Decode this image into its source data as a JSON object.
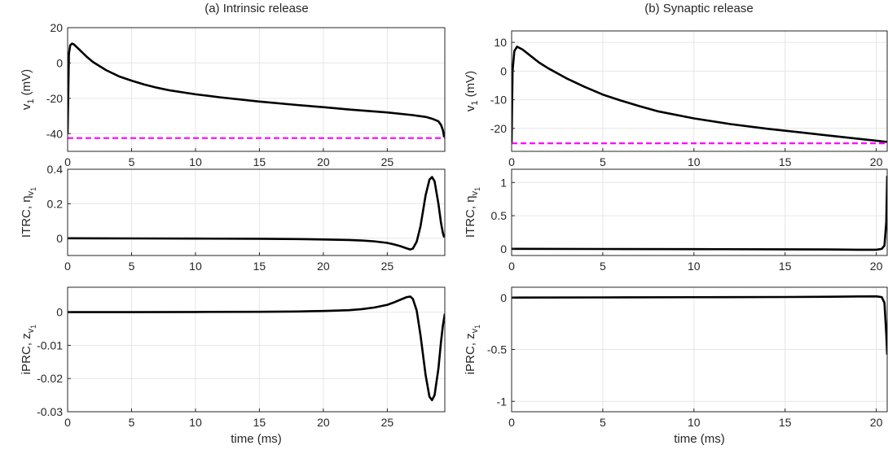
{
  "panels": [
    {
      "title": "(a) Intrinsic release"
    },
    {
      "title": "(b) Synaptic release"
    }
  ],
  "chart_data": [
    {
      "type": "line",
      "id": "a1",
      "xlabel": "",
      "ylabel_main": "v",
      "ylabel_sub": "1",
      "ylabel_suffix": " (mV)",
      "xlim": [
        0,
        29.5
      ],
      "ylim": [
        -50,
        20
      ],
      "xticks": [
        0,
        5,
        10,
        15,
        20,
        25
      ],
      "yticks": [
        -40,
        -20,
        0,
        20
      ],
      "ytick_labels": [
        "-40",
        "-20",
        "0",
        "20"
      ],
      "grid": true,
      "series": [
        {
          "color": "#000000",
          "dash": "solid",
          "x": [
            0,
            0.1,
            0.2,
            0.35,
            0.5,
            1,
            1.5,
            2,
            3,
            4,
            5,
            6,
            7,
            8,
            10,
            12,
            15,
            18,
            20,
            22,
            25,
            27,
            28,
            28.5,
            29,
            29.2,
            29.35,
            29.45
          ],
          "y": [
            -40,
            5,
            10,
            11,
            10.5,
            7,
            3.5,
            0.5,
            -4,
            -7.5,
            -10,
            -12.2,
            -14,
            -15.5,
            -17.7,
            -19.5,
            -21.8,
            -23.8,
            -25,
            -26.3,
            -28,
            -29.5,
            -30.5,
            -31.5,
            -33,
            -35,
            -38,
            -42
          ]
        },
        {
          "color": "#ff00ff",
          "dash": "dashed",
          "x": [
            0,
            29.5
          ],
          "y": [
            -42.5,
            -42.5
          ]
        }
      ]
    },
    {
      "type": "line",
      "id": "a2",
      "xlabel": "",
      "ylabel_main": "ITRC, η",
      "ylabel_sub": "v",
      "ylabel_subsub": "1",
      "ylabel_suffix": "",
      "xlim": [
        0,
        29.5
      ],
      "ylim": [
        -0.1,
        0.4
      ],
      "xticks": [
        0,
        5,
        10,
        15,
        20,
        25
      ],
      "yticks": [
        0,
        0.2,
        0.4
      ],
      "ytick_labels": [
        "0",
        "0.2",
        "0.4"
      ],
      "grid": true,
      "series": [
        {
          "color": "#000000",
          "dash": "solid",
          "x": [
            0,
            5,
            10,
            15,
            18,
            20,
            22,
            23,
            24,
            25,
            25.5,
            26,
            26.5,
            26.8,
            27,
            27.3,
            27.6,
            28,
            28.3,
            28.5,
            28.7,
            29,
            29.2,
            29.35,
            29.45
          ],
          "y": [
            0,
            -0.001,
            -0.002,
            -0.003,
            -0.005,
            -0.007,
            -0.01,
            -0.013,
            -0.018,
            -0.027,
            -0.035,
            -0.045,
            -0.058,
            -0.065,
            -0.06,
            -0.02,
            0.07,
            0.25,
            0.34,
            0.355,
            0.33,
            0.2,
            0.09,
            0.03,
            0.005
          ]
        }
      ]
    },
    {
      "type": "line",
      "id": "a3",
      "xlabel": "time (ms)",
      "ylabel_main": "iPRC, z",
      "ylabel_sub": "v",
      "ylabel_subsub": "1",
      "ylabel_suffix": "",
      "xlim": [
        0,
        29.5
      ],
      "ylim": [
        -0.03,
        0.0075
      ],
      "xticks": [
        0,
        5,
        10,
        15,
        20,
        25
      ],
      "yticks": [
        -0.03,
        -0.02,
        -0.01,
        0
      ],
      "ytick_labels": [
        "-0.03",
        "-0.02",
        "-0.01",
        "0"
      ],
      "grid": true,
      "series": [
        {
          "color": "#000000",
          "dash": "solid",
          "x": [
            0,
            5,
            10,
            15,
            18,
            20,
            22,
            23,
            24,
            25,
            25.5,
            26,
            26.5,
            26.8,
            27,
            27.3,
            27.6,
            28,
            28.3,
            28.5,
            28.7,
            29,
            29.2,
            29.35,
            29.5
          ],
          "y": [
            0,
            0,
            5e-05,
            0.0001,
            0.0002,
            0.00035,
            0.0006,
            0.0009,
            0.0014,
            0.0022,
            0.0029,
            0.0037,
            0.0045,
            0.0047,
            0.004,
            0.0005,
            -0.007,
            -0.019,
            -0.0255,
            -0.0265,
            -0.025,
            -0.017,
            -0.009,
            -0.004,
            -0.0005
          ]
        }
      ]
    },
    {
      "type": "line",
      "id": "b1",
      "xlabel": "",
      "ylabel_main": "v",
      "ylabel_sub": "1",
      "ylabel_suffix": " (mV)",
      "xlim": [
        0,
        20.6
      ],
      "ylim": [
        -28,
        14
      ],
      "xticks": [
        0,
        5,
        10,
        15,
        20
      ],
      "yticks": [
        -20,
        -10,
        0,
        10
      ],
      "ytick_labels": [
        "-20",
        "-10",
        "0",
        "10"
      ],
      "grid": true,
      "series": [
        {
          "color": "#000000",
          "dash": "solid",
          "x": [
            0,
            0.05,
            0.15,
            0.3,
            0.6,
            1,
            1.5,
            2,
            3,
            4,
            5,
            6,
            7,
            8,
            10,
            12,
            14,
            16,
            18,
            20,
            20.6
          ],
          "y": [
            -25,
            0,
            7,
            8.5,
            7.5,
            5.5,
            3,
            1,
            -2.5,
            -5.5,
            -8.2,
            -10.3,
            -12.2,
            -14,
            -16.5,
            -18.5,
            -20.1,
            -21.5,
            -22.9,
            -24.3,
            -24.7
          ]
        },
        {
          "color": "#ff00ff",
          "dash": "dashed",
          "x": [
            0,
            20.6
          ],
          "y": [
            -25.2,
            -25.2
          ]
        }
      ]
    },
    {
      "type": "line",
      "id": "b2",
      "xlabel": "",
      "ylabel_main": "ITRC, η",
      "ylabel_sub": "v",
      "ylabel_subsub": "1",
      "ylabel_suffix": "",
      "xlim": [
        0,
        20.6
      ],
      "ylim": [
        -0.1,
        1.2
      ],
      "xticks": [
        0,
        5,
        10,
        15,
        20
      ],
      "yticks": [
        0,
        0.5,
        1
      ],
      "ytick_labels": [
        "0",
        "0.5",
        "1"
      ],
      "grid": true,
      "series": [
        {
          "color": "#000000",
          "dash": "solid",
          "x": [
            0,
            5,
            10,
            15,
            18,
            19,
            20,
            20.3,
            20.45,
            20.55,
            20.6
          ],
          "y": [
            0,
            -0.002,
            -0.004,
            -0.007,
            -0.01,
            -0.013,
            -0.013,
            0.0,
            0.05,
            0.4,
            1.1
          ]
        }
      ]
    },
    {
      "type": "line",
      "id": "b3",
      "xlabel": "time (ms)",
      "ylabel_main": "iPRC, z",
      "ylabel_sub": "v",
      "ylabel_subsub": "1",
      "ylabel_suffix": "",
      "xlim": [
        0,
        20.6
      ],
      "ylim": [
        -1.1,
        0.1
      ],
      "xticks": [
        0,
        5,
        10,
        15,
        20
      ],
      "yticks": [
        -1,
        -0.5,
        0
      ],
      "ytick_labels": [
        "-1",
        "-0.5",
        "0"
      ],
      "grid": true,
      "series": [
        {
          "color": "#000000",
          "dash": "solid",
          "x": [
            0,
            5,
            10,
            15,
            18,
            19,
            20,
            20.3,
            20.45,
            20.55,
            20.6
          ],
          "y": [
            0,
            0.002,
            0.004,
            0.006,
            0.009,
            0.011,
            0.012,
            0.005,
            -0.05,
            -0.35,
            -0.55
          ]
        }
      ]
    }
  ]
}
